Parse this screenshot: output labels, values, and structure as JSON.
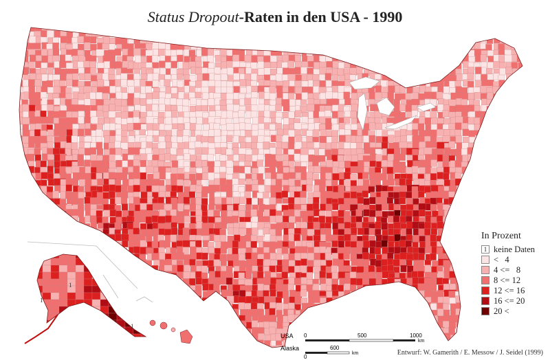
{
  "title": {
    "part1": "Status Dropout",
    "part2": "-Raten in den USA - 1990"
  },
  "legend": {
    "heading": "In Prozent",
    "items": [
      {
        "label": "keine Daten",
        "color": "#ffffff",
        "mark": "1"
      },
      {
        "label": "<   4",
        "color": "#fde4e4",
        "mark": ""
      },
      {
        "label": "4 <=   8",
        "color": "#f8b1b1",
        "mark": ""
      },
      {
        "label": "8 <= 12",
        "color": "#f07070",
        "mark": ""
      },
      {
        "label": "12 <= 16",
        "color": "#dc2020",
        "mark": ""
      },
      {
        "label": "16 <= 20",
        "color": "#b00d14",
        "mark": ""
      },
      {
        "label": "20 <",
        "color": "#6e0000",
        "mark": ""
      }
    ]
  },
  "scale": {
    "usa_label": "USA",
    "usa_ticks": [
      "0",
      "500",
      "1000"
    ],
    "usa_unit": "km",
    "alaska_label": "Alaska",
    "alaska_ticks": [
      "0",
      "600"
    ],
    "alaska_unit": "km"
  },
  "nodata_marks": [
    "1",
    "1",
    "1"
  ],
  "credit": "Entwurf: W. Gamerith / E. Messow / J. Seidel (1999)"
}
